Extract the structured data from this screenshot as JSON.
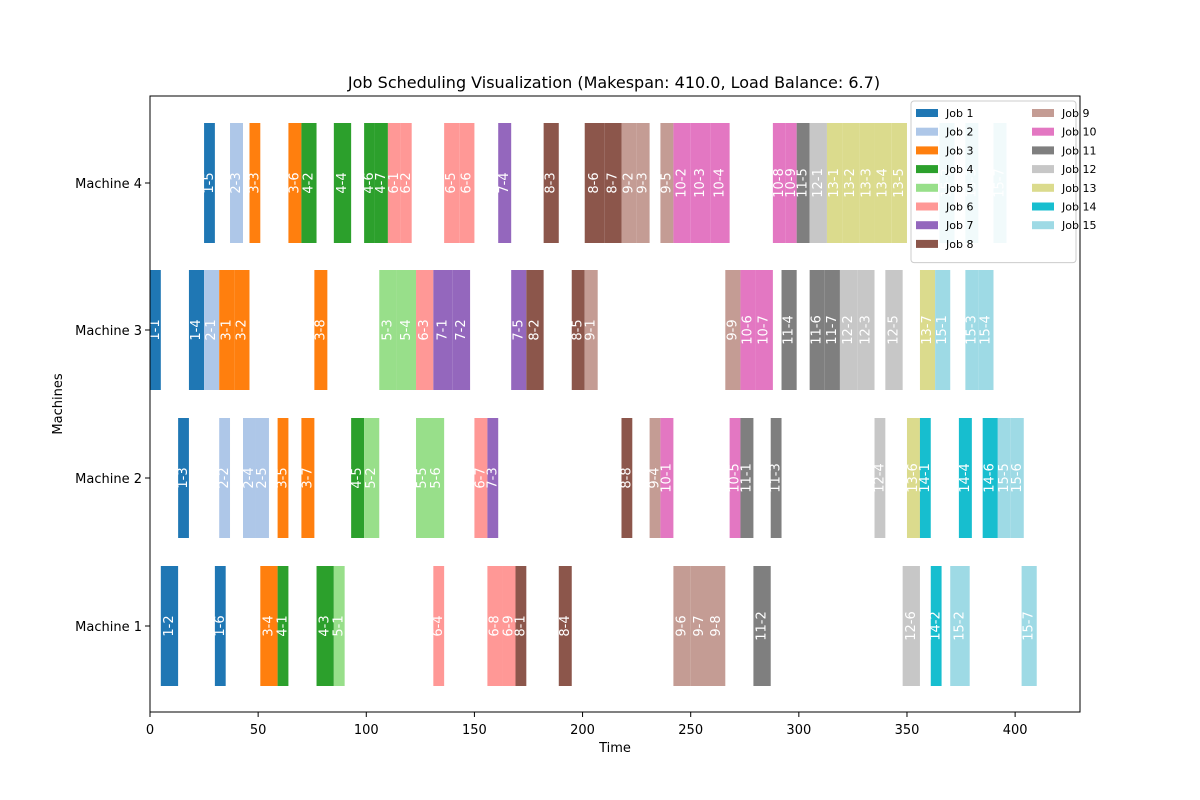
{
  "chart_data": {
    "type": "gantt",
    "title": "Job Scheduling Visualization (Makespan: 410.0, Load Balance: 6.7)",
    "xlabel": "Time",
    "ylabel": "Machines",
    "xlim": [
      0,
      430
    ],
    "xticks": [
      0,
      50,
      100,
      150,
      200,
      250,
      300,
      350,
      400
    ],
    "machines": [
      "Machine 1",
      "Machine 2",
      "Machine 3",
      "Machine 4"
    ],
    "grid": false,
    "legend": {
      "placement": "top-right",
      "columns": 2,
      "entries": [
        {
          "job": 1,
          "name": "Job 1",
          "color": "#1f77b4"
        },
        {
          "job": 2,
          "name": "Job 2",
          "color": "#aec7e8"
        },
        {
          "job": 3,
          "name": "Job 3",
          "color": "#ff7f0e"
        },
        {
          "job": 4,
          "name": "Job 4",
          "color": "#2ca02c"
        },
        {
          "job": 5,
          "name": "Job 5",
          "color": "#98df8a"
        },
        {
          "job": 6,
          "name": "Job 6",
          "color": "#ff9896"
        },
        {
          "job": 7,
          "name": "Job 7",
          "color": "#9467bd"
        },
        {
          "job": 8,
          "name": "Job 8",
          "color": "#8c564b"
        },
        {
          "job": 9,
          "name": "Job 9",
          "color": "#c49c94"
        },
        {
          "job": 10,
          "name": "Job 10",
          "color": "#e377c2"
        },
        {
          "job": 11,
          "name": "Job 11",
          "color": "#7f7f7f"
        },
        {
          "job": 12,
          "name": "Job 12",
          "color": "#c7c7c7"
        },
        {
          "job": 13,
          "name": "Job 13",
          "color": "#dbdb8d"
        },
        {
          "job": 14,
          "name": "Job 14",
          "color": "#17becf"
        },
        {
          "job": 15,
          "name": "Job 15",
          "color": "#9edae5"
        }
      ]
    },
    "tasks": [
      {
        "machine": 4,
        "job": 1,
        "label": "1-5",
        "start": 25,
        "end": 30
      },
      {
        "machine": 4,
        "job": 2,
        "label": "2-3",
        "start": 37,
        "end": 43
      },
      {
        "machine": 4,
        "job": 3,
        "label": "3-3",
        "start": 46,
        "end": 51
      },
      {
        "machine": 4,
        "job": 3,
        "label": "3-6",
        "start": 64,
        "end": 70
      },
      {
        "machine": 4,
        "job": 4,
        "label": "4-2",
        "start": 70,
        "end": 77
      },
      {
        "machine": 4,
        "job": 4,
        "label": "4-4",
        "start": 85,
        "end": 93
      },
      {
        "machine": 4,
        "job": 4,
        "label": "4-6",
        "start": 99,
        "end": 104
      },
      {
        "machine": 4,
        "job": 4,
        "label": "4-7",
        "start": 104,
        "end": 110
      },
      {
        "machine": 4,
        "job": 6,
        "label": "6-1",
        "start": 110,
        "end": 116
      },
      {
        "machine": 4,
        "job": 6,
        "label": "6-2",
        "start": 116,
        "end": 121
      },
      {
        "machine": 4,
        "job": 6,
        "label": "6-5",
        "start": 136,
        "end": 143
      },
      {
        "machine": 4,
        "job": 6,
        "label": "6-6",
        "start": 143,
        "end": 150
      },
      {
        "machine": 4,
        "job": 7,
        "label": "7-4",
        "start": 161,
        "end": 167
      },
      {
        "machine": 4,
        "job": 8,
        "label": "8-3",
        "start": 182,
        "end": 189
      },
      {
        "machine": 4,
        "job": 8,
        "label": "8-6",
        "start": 201,
        "end": 210
      },
      {
        "machine": 4,
        "job": 8,
        "label": "8-7",
        "start": 210,
        "end": 218
      },
      {
        "machine": 4,
        "job": 9,
        "label": "9-2",
        "start": 218,
        "end": 225
      },
      {
        "machine": 4,
        "job": 9,
        "label": "9-3",
        "start": 225,
        "end": 231
      },
      {
        "machine": 4,
        "job": 9,
        "label": "9-5",
        "start": 236,
        "end": 242
      },
      {
        "machine": 4,
        "job": 10,
        "label": "10-2",
        "start": 242,
        "end": 250
      },
      {
        "machine": 4,
        "job": 10,
        "label": "10-3",
        "start": 250,
        "end": 259
      },
      {
        "machine": 4,
        "job": 10,
        "label": "10-4",
        "start": 259,
        "end": 268
      },
      {
        "machine": 4,
        "job": 10,
        "label": "10-8",
        "start": 288,
        "end": 294
      },
      {
        "machine": 4,
        "job": 10,
        "label": "10-9",
        "start": 294,
        "end": 299
      },
      {
        "machine": 4,
        "job": 11,
        "label": "11-5",
        "start": 299,
        "end": 305
      },
      {
        "machine": 4,
        "job": 12,
        "label": "12-1",
        "start": 305,
        "end": 313
      },
      {
        "machine": 4,
        "job": 13,
        "label": "13-1",
        "start": 313,
        "end": 320
      },
      {
        "machine": 4,
        "job": 13,
        "label": "13-2",
        "start": 320,
        "end": 328
      },
      {
        "machine": 4,
        "job": 13,
        "label": "13-3",
        "start": 328,
        "end": 335
      },
      {
        "machine": 4,
        "job": 13,
        "label": "13-4",
        "start": 335,
        "end": 343
      },
      {
        "machine": 4,
        "job": 13,
        "label": "13-5",
        "start": 343,
        "end": 350
      },
      {
        "machine": 4,
        "job": 15,
        "label": "15-2",
        "start": 365,
        "end": 372
      },
      {
        "machine": 4,
        "job": 15,
        "label": "15-3",
        "start": 377,
        "end": 383
      },
      {
        "machine": 4,
        "job": 15,
        "label": "15-7",
        "start": 390,
        "end": 396
      },
      {
        "machine": 3,
        "job": 1,
        "label": "1-1",
        "start": 0,
        "end": 5
      },
      {
        "machine": 3,
        "job": 1,
        "label": "1-4",
        "start": 18,
        "end": 25
      },
      {
        "machine": 3,
        "job": 2,
        "label": "2-1",
        "start": 25,
        "end": 32
      },
      {
        "machine": 3,
        "job": 3,
        "label": "3-1",
        "start": 32,
        "end": 39
      },
      {
        "machine": 3,
        "job": 3,
        "label": "3-2",
        "start": 39,
        "end": 46
      },
      {
        "machine": 3,
        "job": 3,
        "label": "3-8",
        "start": 76,
        "end": 82
      },
      {
        "machine": 3,
        "job": 5,
        "label": "5-3",
        "start": 106,
        "end": 114
      },
      {
        "machine": 3,
        "job": 5,
        "label": "5-4",
        "start": 114,
        "end": 123
      },
      {
        "machine": 3,
        "job": 6,
        "label": "6-3",
        "start": 123,
        "end": 131
      },
      {
        "machine": 3,
        "job": 7,
        "label": "7-1",
        "start": 131,
        "end": 140
      },
      {
        "machine": 3,
        "job": 7,
        "label": "7-2",
        "start": 140,
        "end": 148
      },
      {
        "machine": 3,
        "job": 7,
        "label": "7-5",
        "start": 167,
        "end": 174
      },
      {
        "machine": 3,
        "job": 8,
        "label": "8-2",
        "start": 174,
        "end": 182
      },
      {
        "machine": 3,
        "job": 8,
        "label": "8-5",
        "start": 195,
        "end": 201
      },
      {
        "machine": 3,
        "job": 9,
        "label": "9-1",
        "start": 201,
        "end": 207
      },
      {
        "machine": 3,
        "job": 9,
        "label": "9-9",
        "start": 266,
        "end": 273
      },
      {
        "machine": 3,
        "job": 10,
        "label": "10-6",
        "start": 273,
        "end": 280
      },
      {
        "machine": 3,
        "job": 10,
        "label": "10-7",
        "start": 280,
        "end": 288
      },
      {
        "machine": 3,
        "job": 11,
        "label": "11-4",
        "start": 292,
        "end": 299
      },
      {
        "machine": 3,
        "job": 11,
        "label": "11-6",
        "start": 305,
        "end": 312
      },
      {
        "machine": 3,
        "job": 11,
        "label": "11-7",
        "start": 312,
        "end": 319
      },
      {
        "machine": 3,
        "job": 12,
        "label": "12-2",
        "start": 319,
        "end": 327
      },
      {
        "machine": 3,
        "job": 12,
        "label": "12-3",
        "start": 327,
        "end": 335
      },
      {
        "machine": 3,
        "job": 12,
        "label": "12-5",
        "start": 340,
        "end": 348
      },
      {
        "machine": 3,
        "job": 13,
        "label": "13-7",
        "start": 356,
        "end": 363
      },
      {
        "machine": 3,
        "job": 15,
        "label": "15-1",
        "start": 363,
        "end": 370
      },
      {
        "machine": 3,
        "job": 15,
        "label": "15-3",
        "start": 377,
        "end": 383
      },
      {
        "machine": 3,
        "job": 15,
        "label": "15-4",
        "start": 383,
        "end": 390
      },
      {
        "machine": 2,
        "job": 1,
        "label": "1-3",
        "start": 13,
        "end": 18
      },
      {
        "machine": 2,
        "job": 2,
        "label": "2-2",
        "start": 32,
        "end": 37
      },
      {
        "machine": 2,
        "job": 2,
        "label": "2-4",
        "start": 43,
        "end": 49
      },
      {
        "machine": 2,
        "job": 2,
        "label": "2-5",
        "start": 49,
        "end": 55
      },
      {
        "machine": 2,
        "job": 3,
        "label": "3-5",
        "start": 59,
        "end": 64
      },
      {
        "machine": 2,
        "job": 3,
        "label": "3-7",
        "start": 70,
        "end": 76
      },
      {
        "machine": 2,
        "job": 4,
        "label": "4-5",
        "start": 93,
        "end": 99
      },
      {
        "machine": 2,
        "job": 5,
        "label": "5-2",
        "start": 99,
        "end": 106
      },
      {
        "machine": 2,
        "job": 5,
        "label": "5-5",
        "start": 123,
        "end": 129
      },
      {
        "machine": 2,
        "job": 5,
        "label": "5-6",
        "start": 129,
        "end": 136
      },
      {
        "machine": 2,
        "job": 6,
        "label": "6-7",
        "start": 150,
        "end": 156
      },
      {
        "machine": 2,
        "job": 7,
        "label": "7-3",
        "start": 156,
        "end": 161
      },
      {
        "machine": 2,
        "job": 8,
        "label": "8-8",
        "start": 218,
        "end": 223
      },
      {
        "machine": 2,
        "job": 9,
        "label": "9-4",
        "start": 231,
        "end": 236
      },
      {
        "machine": 2,
        "job": 10,
        "label": "10-1",
        "start": 236,
        "end": 242
      },
      {
        "machine": 2,
        "job": 10,
        "label": "10-5",
        "start": 268,
        "end": 273
      },
      {
        "machine": 2,
        "job": 11,
        "label": "11-1",
        "start": 273,
        "end": 279
      },
      {
        "machine": 2,
        "job": 11,
        "label": "11-3",
        "start": 287,
        "end": 292
      },
      {
        "machine": 2,
        "job": 12,
        "label": "12-4",
        "start": 335,
        "end": 340
      },
      {
        "machine": 2,
        "job": 13,
        "label": "13-6",
        "start": 350,
        "end": 356
      },
      {
        "machine": 2,
        "job": 14,
        "label": "14-1",
        "start": 356,
        "end": 361
      },
      {
        "machine": 2,
        "job": 14,
        "label": "14-4",
        "start": 374,
        "end": 380
      },
      {
        "machine": 2,
        "job": 14,
        "label": "14-6",
        "start": 385,
        "end": 392
      },
      {
        "machine": 2,
        "job": 15,
        "label": "15-5",
        "start": 392,
        "end": 398
      },
      {
        "machine": 2,
        "job": 15,
        "label": "15-6",
        "start": 398,
        "end": 404
      },
      {
        "machine": 1,
        "job": 1,
        "label": "1-2",
        "start": 5,
        "end": 13
      },
      {
        "machine": 1,
        "job": 1,
        "label": "1-6",
        "start": 30,
        "end": 35
      },
      {
        "machine": 1,
        "job": 3,
        "label": "3-4",
        "start": 51,
        "end": 59
      },
      {
        "machine": 1,
        "job": 4,
        "label": "4-1",
        "start": 59,
        "end": 64
      },
      {
        "machine": 1,
        "job": 4,
        "label": "4-3",
        "start": 77,
        "end": 85
      },
      {
        "machine": 1,
        "job": 5,
        "label": "5-1",
        "start": 85,
        "end": 90
      },
      {
        "machine": 1,
        "job": 6,
        "label": "6-4",
        "start": 131,
        "end": 136
      },
      {
        "machine": 1,
        "job": 6,
        "label": "6-8",
        "start": 156,
        "end": 163
      },
      {
        "machine": 1,
        "job": 6,
        "label": "6-9",
        "start": 163,
        "end": 169
      },
      {
        "machine": 1,
        "job": 8,
        "label": "8-1",
        "start": 169,
        "end": 174
      },
      {
        "machine": 1,
        "job": 8,
        "label": "8-4",
        "start": 189,
        "end": 195
      },
      {
        "machine": 1,
        "job": 9,
        "label": "9-6",
        "start": 242,
        "end": 250
      },
      {
        "machine": 1,
        "job": 9,
        "label": "9-7",
        "start": 250,
        "end": 258
      },
      {
        "machine": 1,
        "job": 9,
        "label": "9-8",
        "start": 258,
        "end": 266
      },
      {
        "machine": 1,
        "job": 11,
        "label": "11-2",
        "start": 279,
        "end": 287
      },
      {
        "machine": 1,
        "job": 12,
        "label": "12-6",
        "start": 348,
        "end": 356
      },
      {
        "machine": 1,
        "job": 14,
        "label": "14-2",
        "start": 361,
        "end": 366
      },
      {
        "machine": 1,
        "job": 15,
        "label": "15-2",
        "start": 370,
        "end": 379
      },
      {
        "machine": 1,
        "job": 15,
        "label": "15-7",
        "start": 403,
        "end": 410
      }
    ]
  }
}
